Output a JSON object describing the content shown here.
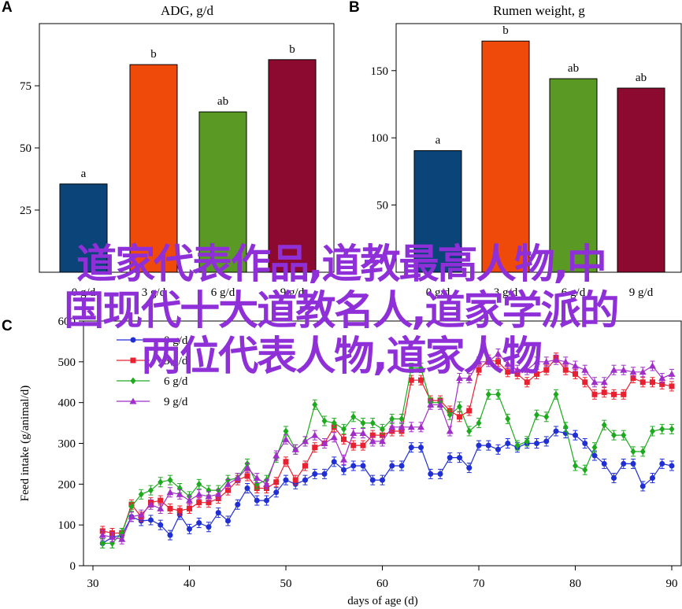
{
  "chart_data": [
    {
      "panel": "A",
      "type": "bar",
      "title": "ADG, g/d",
      "categories": [
        "0 g/d",
        "3 g/d",
        "6 g/d",
        "9 g/d"
      ],
      "values": [
        35.5,
        83.5,
        64.5,
        85.5
      ],
      "letters": [
        "a",
        "b",
        "ab",
        "b"
      ],
      "colors": [
        "#0b4479",
        "#f04a0b",
        "#5a9a24",
        "#8c0a2f"
      ],
      "ylim": [
        0,
        100
      ],
      "yticks": [
        25,
        50,
        75
      ]
    },
    {
      "panel": "B",
      "type": "bar",
      "title": "Rumen weight, g",
      "categories": [
        "0 g/d",
        "3 g/d",
        "6 g/d",
        "9 g/d"
      ],
      "values": [
        90.5,
        172,
        144,
        137
      ],
      "letters": [
        "a",
        "b",
        "ab",
        "ab"
      ],
      "colors": [
        "#0b4479",
        "#f04a0b",
        "#5a9a24",
        "#8c0a2f"
      ],
      "ylim": [
        0,
        185
      ],
      "yticks": [
        50,
        100,
        150
      ]
    },
    {
      "panel": "C",
      "type": "line",
      "xlabel": "days of age (d)",
      "ylabel": "Feed intake (g/animal/d)",
      "xlim": [
        29.5,
        90.5
      ],
      "ylim": [
        0,
        600
      ],
      "xticks": [
        30,
        40,
        50,
        60,
        70,
        80,
        90
      ],
      "yticks": [
        0,
        100,
        200,
        300,
        400,
        500,
        600
      ],
      "x": [
        31,
        32,
        33,
        34,
        35,
        36,
        37,
        38,
        39,
        40,
        41,
        42,
        43,
        44,
        45,
        46,
        47,
        48,
        49,
        50,
        51,
        52,
        53,
        54,
        55,
        56,
        57,
        58,
        59,
        60,
        61,
        62,
        63,
        64,
        65,
        66,
        67,
        68,
        69,
        70,
        71,
        72,
        73,
        74,
        75,
        76,
        77,
        78,
        79,
        80,
        81,
        82,
        83,
        84,
        85,
        86,
        87,
        88,
        89,
        90
      ],
      "series": [
        {
          "name": "0 g/d",
          "color": "#1f2fd4",
          "marker": "circle",
          "values": [
            55,
            70,
            75,
            120,
            110,
            112,
            100,
            75,
            125,
            90,
            105,
            95,
            130,
            110,
            150,
            190,
            160,
            160,
            180,
            210,
            200,
            210,
            225,
            225,
            255,
            235,
            245,
            245,
            210,
            210,
            245,
            245,
            290,
            290,
            225,
            225,
            265,
            265,
            240,
            295,
            295,
            285,
            300,
            290,
            300,
            300,
            305,
            330,
            325,
            320,
            300,
            270,
            250,
            215,
            250,
            250,
            195,
            215,
            250,
            245
          ]
        },
        {
          "name": "3 g/d",
          "color": "#e8202f",
          "marker": "square",
          "values": [
            85,
            80,
            80,
            150,
            120,
            155,
            160,
            140,
            135,
            140,
            155,
            155,
            165,
            185,
            210,
            220,
            190,
            190,
            205,
            255,
            210,
            245,
            290,
            300,
            340,
            310,
            295,
            295,
            320,
            320,
            330,
            330,
            455,
            455,
            405,
            405,
            380,
            365,
            380,
            480,
            505,
            500,
            475,
            470,
            450,
            470,
            480,
            510,
            480,
            470,
            450,
            420,
            425,
            420,
            420,
            460,
            450,
            450,
            445,
            440
          ]
        },
        {
          "name": "6 g/d",
          "color": "#1eaa1e",
          "marker": "diamond",
          "values": [
            55,
            55,
            80,
            145,
            175,
            185,
            205,
            210,
            190,
            170,
            200,
            185,
            185,
            210,
            215,
            250,
            200,
            210,
            265,
            330,
            285,
            305,
            395,
            355,
            350,
            335,
            365,
            350,
            350,
            335,
            360,
            360,
            485,
            485,
            400,
            400,
            370,
            390,
            330,
            350,
            420,
            420,
            360,
            295,
            305,
            370,
            365,
            420,
            340,
            245,
            235,
            290,
            345,
            320,
            320,
            280,
            280,
            330,
            335,
            335
          ]
        },
        {
          "name": "9 g/d",
          "color": "#a02ec8",
          "marker": "triangle",
          "values": [
            75,
            70,
            65,
            120,
            125,
            150,
            140,
            180,
            175,
            160,
            175,
            170,
            175,
            200,
            215,
            240,
            215,
            200,
            270,
            310,
            285,
            305,
            320,
            300,
            315,
            260,
            325,
            325,
            305,
            305,
            340,
            340,
            340,
            340,
            395,
            395,
            330,
            460,
            460,
            500,
            500,
            520,
            495,
            480,
            480,
            500,
            500,
            505,
            500,
            490,
            480,
            450,
            450,
            480,
            480,
            475,
            475,
            490,
            460,
            470
          ]
        }
      ],
      "legend_position": "upper-left"
    }
  ],
  "overlay": {
    "lines": [
      "道家代表作品,道教最高人物,中",
      "国现代十大道教名人,道家学派的",
      "两位代表人物,道家人物"
    ],
    "color": "#8e2fd8"
  }
}
